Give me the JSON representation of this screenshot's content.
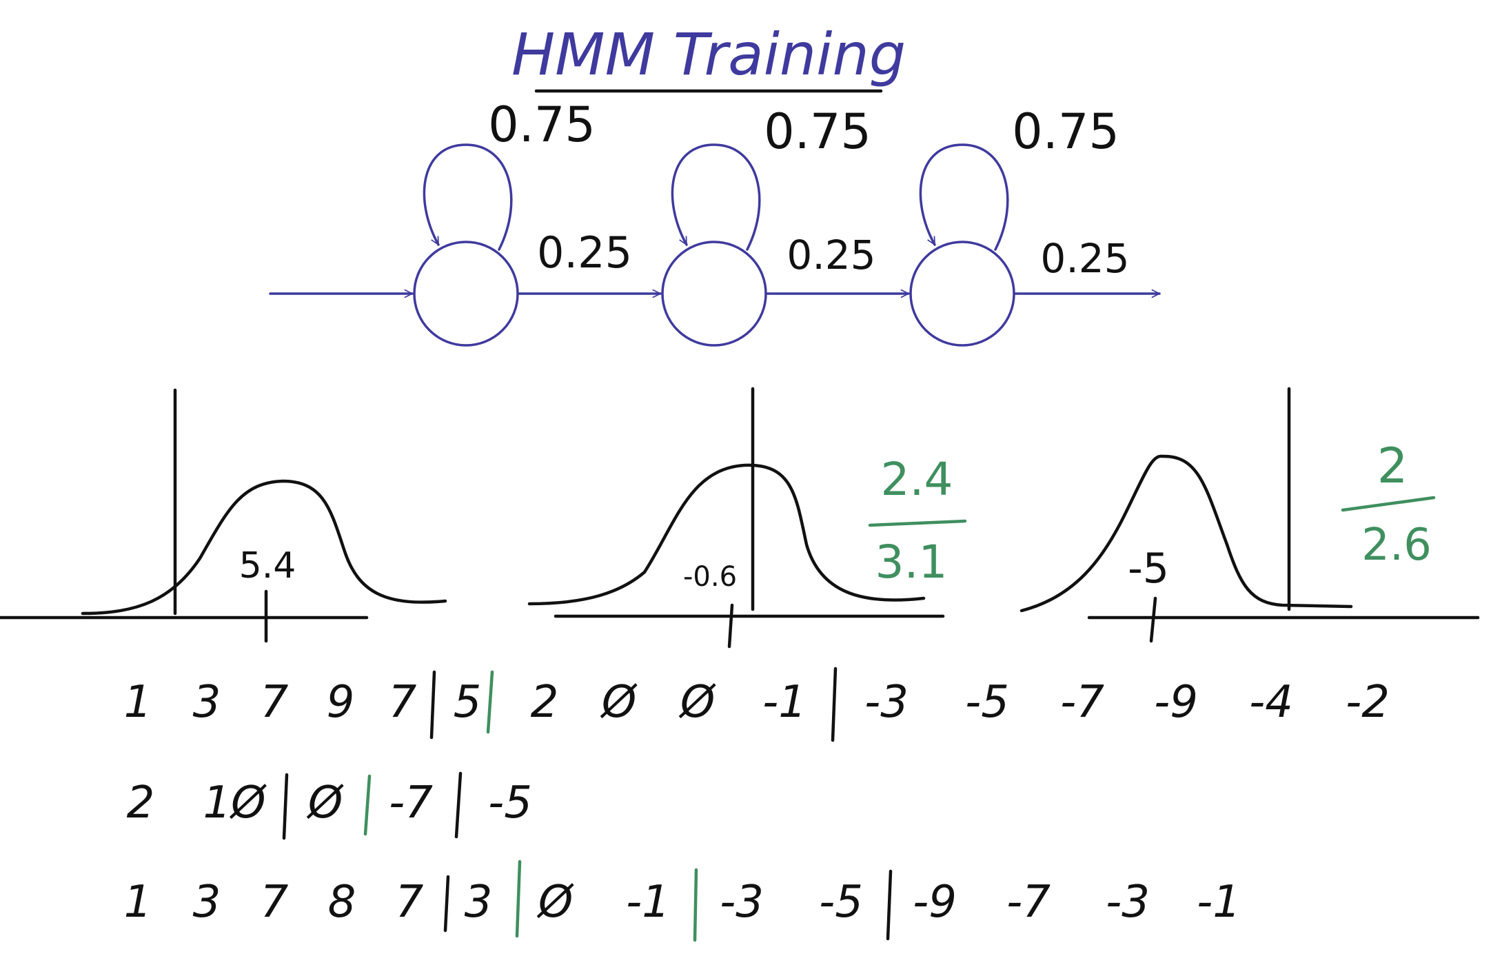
{
  "title": "HMM Training",
  "states": {
    "self_loops": [
      "0.75",
      "0.75",
      "0.75"
    ],
    "transitions": [
      "0.25",
      "0.25",
      "0.25"
    ]
  },
  "gaussians": [
    {
      "mean_label": "5.4"
    },
    {
      "mean_label": "-0.6",
      "note_top": "2.4",
      "note_bottom": "3.1"
    },
    {
      "mean_label": "-5",
      "note_top": "2",
      "note_bottom": "2.6"
    }
  ],
  "sequences": [
    [
      "1",
      "3",
      "7",
      "9",
      "7",
      "5",
      "2",
      "Ø",
      "Ø",
      "-1",
      "-3",
      "-5",
      "-7",
      "-9",
      "-4",
      "-2"
    ],
    [
      "2",
      "1Ø",
      "Ø",
      "-7",
      "-5"
    ],
    [
      "1",
      "3",
      "7",
      "8",
      "7",
      "3",
      "Ø",
      "-1",
      "-3",
      "-5",
      "-9",
      "-7",
      "-3",
      "-1"
    ]
  ],
  "colors": {
    "diagram": "#3f3a9e",
    "ink": "#111111",
    "annotation": "#3f8f5f"
  }
}
